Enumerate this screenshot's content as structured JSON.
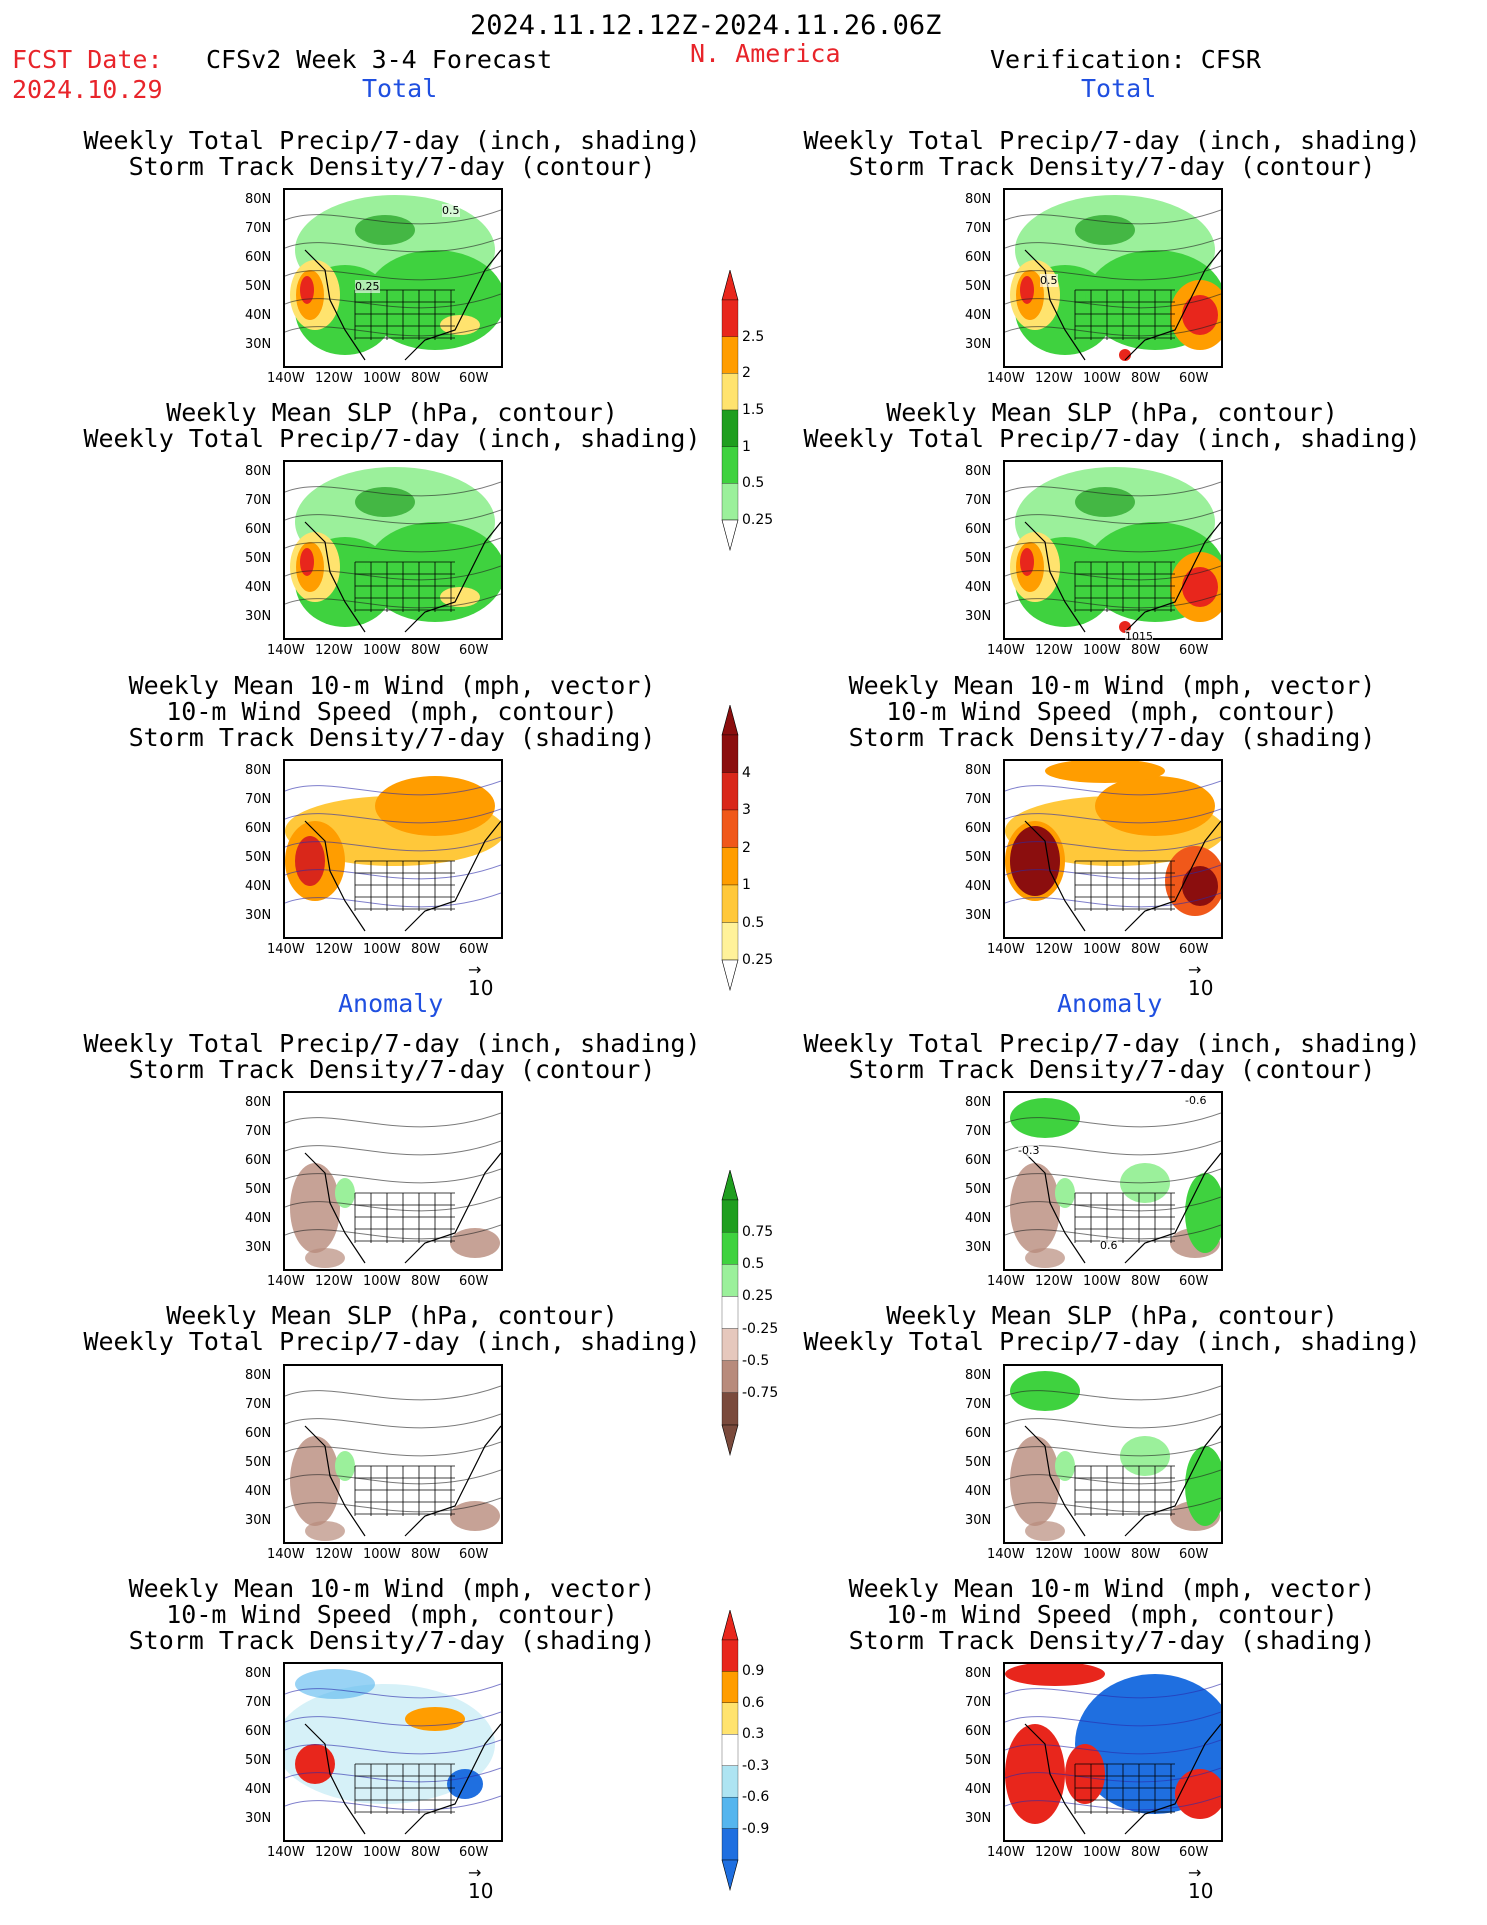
{
  "header": {
    "date_range": "2024.11.12.12Z-2024.11.26.06Z",
    "fcst_label": "FCST Date:",
    "fcst_date": "2024.10.29",
    "forecast_title": "CFSv2 Week 3-4 Forecast",
    "region": "N. America",
    "verification": "Verification: CFSR",
    "total_left": "Total",
    "total_right": "Total",
    "anomaly_left": "Anomaly",
    "anomaly_right": "Anomaly"
  },
  "panel_titles": {
    "precip_track": [
      "Weekly Total Precip/7-day (inch, shading)",
      "Storm Track Density/7-day (contour)"
    ],
    "slp_precip": [
      "Weekly Mean SLP (hPa, contour)",
      "Weekly Total Precip/7-day (inch, shading)"
    ],
    "wind_track": [
      "Weekly Mean 10-m Wind (mph, vector)",
      "10-m Wind Speed (mph, contour)",
      "Storm Track Density/7-day (shading)"
    ]
  },
  "axes": {
    "lat": [
      "80N",
      "70N",
      "60N",
      "50N",
      "40N",
      "30N"
    ],
    "lon": [
      "140W",
      "120W",
      "100W",
      "80W",
      "60W"
    ]
  },
  "vector_ref": "10",
  "colorbars": {
    "precip_total": {
      "labels": [
        "2.5",
        "2",
        "1.5",
        "1",
        "0.5",
        "0.25"
      ],
      "colors": [
        "#e8261c",
        "#ff9d00",
        "#ffe36e",
        "#1f9e1f",
        "#3fd23f",
        "#9bf09b"
      ]
    },
    "track_total": {
      "labels": [
        "4",
        "3",
        "2",
        "1",
        "0.5",
        "0.25"
      ],
      "colors": [
        "#8b0e0e",
        "#d9271a",
        "#f0581a",
        "#ff9d00",
        "#ffc83a",
        "#fff29a"
      ]
    },
    "precip_anom": {
      "labels": [
        "0.75",
        "0.5",
        "0.25",
        "-0.25",
        "-0.5",
        "-0.75"
      ],
      "colors": [
        "#1f9e1f",
        "#3fd23f",
        "#9bf09b",
        "#ffffff",
        "#e6c8bd",
        "#b88b7c",
        "#7a4a3c"
      ]
    },
    "track_anom": {
      "labels": [
        "0.9",
        "0.6",
        "0.3",
        "-0.3",
        "-0.6",
        "-0.9"
      ],
      "colors": [
        "#e8261c",
        "#ff9d00",
        "#ffe36e",
        "#ffffff",
        "#aee4f2",
        "#55b5ee",
        "#1f6fe0"
      ]
    }
  },
  "contour_labels": {
    "lf_precip": [
      "0.5",
      "0.25"
    ],
    "rt_precip": [
      "0.5"
    ],
    "rt_slp": [
      "1015"
    ],
    "lf_anom_track": [],
    "rt_anom_precip": [
      "-0.6",
      "-0.3",
      "0.6"
    ]
  },
  "colors": {
    "red": "#e8242a",
    "blue": "#1f4fe0"
  }
}
